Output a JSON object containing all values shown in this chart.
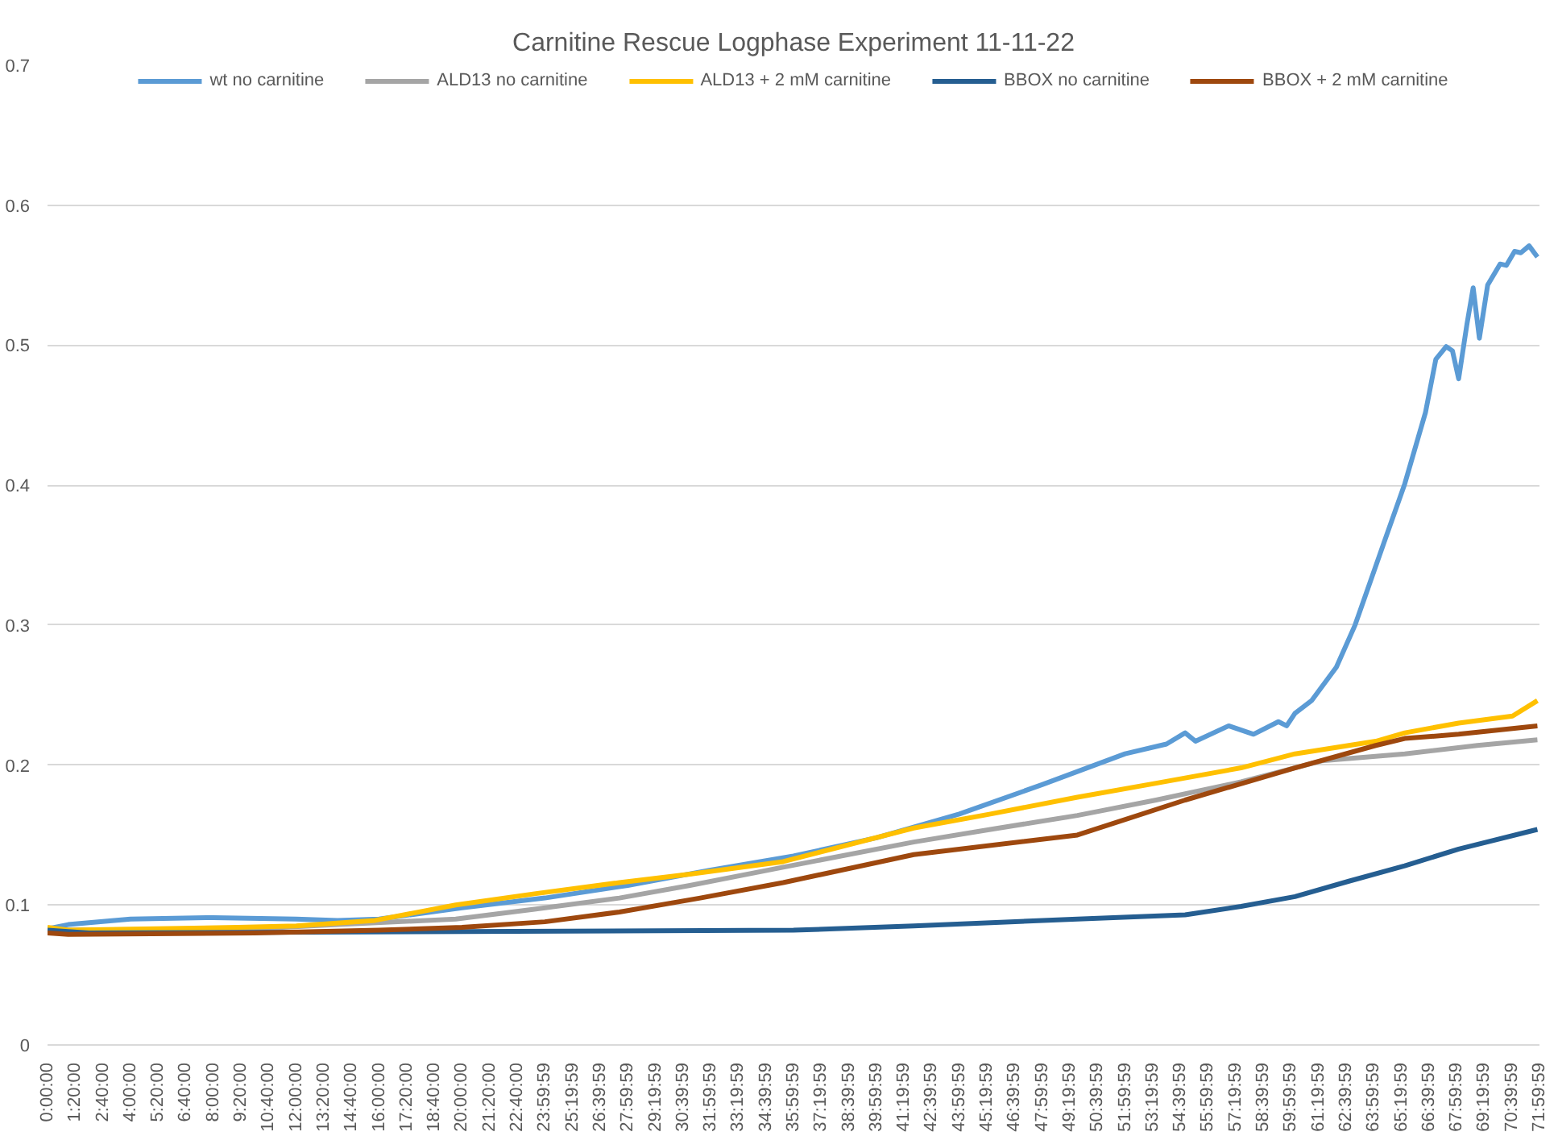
{
  "chart_data": {
    "type": "line",
    "title": "Carnitine Rescue Logphase Experiment 11-11-22",
    "legend": "top",
    "grid": "y",
    "xlim": [
      0,
      72
    ],
    "ylim": [
      0,
      0.7
    ],
    "yticks": [
      0,
      0.1,
      0.2,
      0.3,
      0.4,
      0.5,
      0.6,
      0.7
    ],
    "xticks": [
      {
        "value": 0,
        "label": "0:00:00"
      },
      {
        "value": 1.3333,
        "label": "1:20:00"
      },
      {
        "value": 2.6667,
        "label": "2:40:00"
      },
      {
        "value": 4,
        "label": "4:00:00"
      },
      {
        "value": 5.3333,
        "label": "5:20:00"
      },
      {
        "value": 6.6667,
        "label": "6:40:00"
      },
      {
        "value": 8,
        "label": "8:00:00"
      },
      {
        "value": 9.3333,
        "label": "9:20:00"
      },
      {
        "value": 10.6667,
        "label": "10:40:00"
      },
      {
        "value": 12,
        "label": "12:00:00"
      },
      {
        "value": 13.3333,
        "label": "13:20:00"
      },
      {
        "value": 14.6667,
        "label": "14:40:00"
      },
      {
        "value": 16,
        "label": "16:00:00"
      },
      {
        "value": 17.3333,
        "label": "17:20:00"
      },
      {
        "value": 18.6667,
        "label": "18:40:00"
      },
      {
        "value": 20,
        "label": "20:00:00"
      },
      {
        "value": 21.3333,
        "label": "21:20:00"
      },
      {
        "value": 22.6667,
        "label": "22:40:00"
      },
      {
        "value": 23.9997,
        "label": "23:59:59"
      },
      {
        "value": 25.3331,
        "label": "25:19:59"
      },
      {
        "value": 26.6664,
        "label": "26:39:59"
      },
      {
        "value": 27.9997,
        "label": "27:59:59"
      },
      {
        "value": 29.3331,
        "label": "29:19:59"
      },
      {
        "value": 30.6664,
        "label": "30:39:59"
      },
      {
        "value": 31.9997,
        "label": "31:59:59"
      },
      {
        "value": 33.3331,
        "label": "33:19:59"
      },
      {
        "value": 34.6664,
        "label": "34:39:59"
      },
      {
        "value": 35.9997,
        "label": "35:59:59"
      },
      {
        "value": 37.3331,
        "label": "37:19:59"
      },
      {
        "value": 38.6664,
        "label": "38:39:59"
      },
      {
        "value": 39.9997,
        "label": "39:59:59"
      },
      {
        "value": 41.3331,
        "label": "41:19:59"
      },
      {
        "value": 42.6664,
        "label": "42:39:59"
      },
      {
        "value": 43.9997,
        "label": "43:59:59"
      },
      {
        "value": 45.3331,
        "label": "45:19:59"
      },
      {
        "value": 46.6664,
        "label": "46:39:59"
      },
      {
        "value": 47.9997,
        "label": "47:59:59"
      },
      {
        "value": 49.3331,
        "label": "49:19:59"
      },
      {
        "value": 50.6664,
        "label": "50:39:59"
      },
      {
        "value": 51.9997,
        "label": "51:59:59"
      },
      {
        "value": 53.3331,
        "label": "53:19:59"
      },
      {
        "value": 54.6664,
        "label": "54:39:59"
      },
      {
        "value": 55.9997,
        "label": "55:59:59"
      },
      {
        "value": 57.3331,
        "label": "57:19:59"
      },
      {
        "value": 58.6664,
        "label": "58:39:59"
      },
      {
        "value": 59.9997,
        "label": "59:59:59"
      },
      {
        "value": 61.3331,
        "label": "61:19:59"
      },
      {
        "value": 62.6664,
        "label": "62:39:59"
      },
      {
        "value": 63.9997,
        "label": "63:59:59"
      },
      {
        "value": 65.3331,
        "label": "65:19:59"
      },
      {
        "value": 66.6664,
        "label": "66:39:59"
      },
      {
        "value": 67.9997,
        "label": "67:59:59"
      },
      {
        "value": 69.3331,
        "label": "69:19:59"
      },
      {
        "value": 70.6664,
        "label": "70:39:59"
      },
      {
        "value": 71.9997,
        "label": "71:59:59"
      }
    ],
    "series": [
      {
        "name": "wt no carnitine",
        "color": "#5b9bd5",
        "x": [
          0,
          1,
          4,
          8,
          12,
          14,
          16,
          20,
          24,
          28,
          32,
          36,
          40,
          44,
          48,
          52,
          54,
          54.9,
          55.4,
          57.0,
          58.2,
          59.4,
          59.8,
          60.2,
          61.0,
          62.2,
          63.1,
          64.5,
          65.5,
          66.5,
          67.0,
          67.5,
          67.8,
          68.1,
          68.5,
          68.8,
          69.1,
          69.5,
          70.1,
          70.4,
          70.8,
          71.1,
          71.5,
          71.9
        ],
        "values": [
          0.083,
          0.086,
          0.09,
          0.091,
          0.09,
          0.089,
          0.09,
          0.098,
          0.105,
          0.114,
          0.125,
          0.135,
          0.148,
          0.165,
          0.186,
          0.208,
          0.215,
          0.223,
          0.217,
          0.228,
          0.222,
          0.231,
          0.228,
          0.237,
          0.246,
          0.27,
          0.3,
          0.359,
          0.401,
          0.452,
          0.49,
          0.499,
          0.496,
          0.476,
          0.515,
          0.541,
          0.505,
          0.543,
          0.558,
          0.557,
          0.567,
          0.566,
          0.571,
          0.563
        ]
      },
      {
        "name": "ALD13 no carnitine",
        "color": "#a5a5a5",
        "x": [
          0,
          10,
          14,
          19.7,
          23.5,
          27.6,
          31,
          35.5,
          41.8,
          45.5,
          49.7,
          53.5,
          57.6,
          61.5,
          65.5,
          69,
          71.9
        ],
        "values": [
          0.082,
          0.083,
          0.086,
          0.09,
          0.097,
          0.105,
          0.114,
          0.127,
          0.145,
          0.154,
          0.164,
          0.175,
          0.188,
          0.203,
          0.208,
          0.214,
          0.218
        ]
      },
      {
        "name": "ALD13 + 2 mM carnitine",
        "color": "#ffc000",
        "x": [
          0,
          1,
          9.2,
          12,
          15.8,
          19.7,
          23.5,
          27.6,
          31,
          35.5,
          41.8,
          45.5,
          49.7,
          53.5,
          57.6,
          60.2,
          64.1,
          65.5,
          68.1,
          70.7,
          71.9
        ],
        "values": [
          0.084,
          0.082,
          0.084,
          0.085,
          0.089,
          0.1,
          0.108,
          0.116,
          0.122,
          0.131,
          0.155,
          0.165,
          0.177,
          0.187,
          0.198,
          0.208,
          0.217,
          0.223,
          0.23,
          0.235,
          0.246
        ]
      },
      {
        "name": "BBOX no carnitine",
        "color": "#255e91",
        "x": [
          0,
          2,
          20,
          36,
          41.8,
          49.7,
          54.9,
          57.6,
          60.2,
          62.8,
          65.5,
          68.1,
          71.9
        ],
        "values": [
          0.082,
          0.08,
          0.081,
          0.082,
          0.085,
          0.09,
          0.093,
          0.099,
          0.106,
          0.117,
          0.128,
          0.14,
          0.154
        ]
      },
      {
        "name": "BBOX + 2 mM carnitine",
        "color": "#9e480e",
        "x": [
          0,
          1,
          10,
          16,
          20,
          24,
          27.6,
          31.5,
          35.5,
          41.8,
          49.7,
          54.9,
          60.2,
          64.1,
          65.5,
          68.1,
          71.9
        ],
        "values": [
          0.08,
          0.079,
          0.08,
          0.082,
          0.084,
          0.088,
          0.095,
          0.105,
          0.116,
          0.136,
          0.15,
          0.175,
          0.198,
          0.214,
          0.219,
          0.222,
          0.228
        ]
      }
    ]
  }
}
